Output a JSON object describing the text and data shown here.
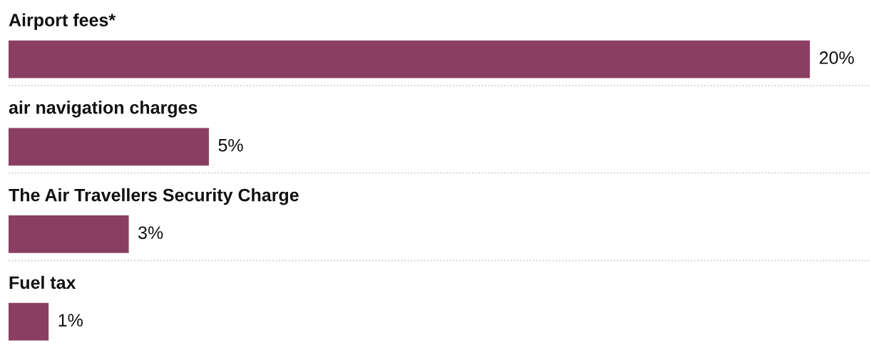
{
  "chart_data": {
    "type": "bar",
    "orientation": "horizontal",
    "categories": [
      "Airport fees*",
      "air navigation charges",
      "The Air Travellers Security Charge",
      "Fuel tax"
    ],
    "values": [
      20,
      5,
      3,
      1
    ],
    "value_labels": [
      "20%",
      "5%",
      "3%",
      "1%"
    ],
    "color": "#8a3f62",
    "xlim": [
      0,
      21.5
    ],
    "grid": "y"
  }
}
